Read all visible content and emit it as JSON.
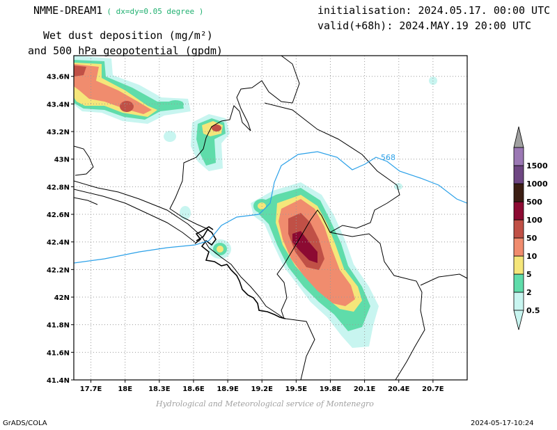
{
  "header": {
    "model": "NMME-DREAM1",
    "resolution": "( dx=dy=0.05 degree )",
    "title_line1": "Wet dust deposition (mg/m²)",
    "title_line2": "and 500 hPa geopotential (gpdm)",
    "init": "initialisation: 2024.05.17. 00:00 UTC",
    "valid": "valid(+68h): 2024.MAY.19 20:00 UTC"
  },
  "footer": {
    "credit": "Hydrological and Meteorological service of Montenegro",
    "software": "GrADS/COLA",
    "timestamp": "2024-05-17-10:24"
  },
  "map": {
    "lon_range": [
      17.55,
      21.0
    ],
    "lat_range": [
      41.4,
      43.75
    ],
    "lon_ticks": [
      17.7,
      18.0,
      18.3,
      18.6,
      18.9,
      19.2,
      19.5,
      19.8,
      20.1,
      20.4,
      20.7
    ],
    "lon_tick_labels": [
      "17.7E",
      "18E",
      "18.3E",
      "18.6E",
      "18.9E",
      "19.2E",
      "19.5E",
      "19.8E",
      "20.1E",
      "20.4E",
      "20.7E"
    ],
    "lat_ticks": [
      41.4,
      41.6,
      41.8,
      42.0,
      42.2,
      42.4,
      42.6,
      42.8,
      43.0,
      43.2,
      43.4,
      43.6
    ],
    "lat_tick_labels": [
      "41.4N",
      "41.6N",
      "41.8N",
      "42N",
      "42.2N",
      "42.4N",
      "42.6N",
      "42.8N",
      "43N",
      "43.2N",
      "43.4N",
      "43.6N"
    ],
    "contour_label": "568",
    "contour_color": "#2aa0e8"
  },
  "colorbar": {
    "levels": [
      "0.5",
      "2",
      "5",
      "10",
      "50",
      "100",
      "500",
      "1000",
      "1500"
    ],
    "colors": [
      "#c8f5f0",
      "#5fdcaa",
      "#f5e67a",
      "#f08c6e",
      "#c05046",
      "#8c0a32",
      "#3c1e14",
      "#6e4682",
      "#9b78b4"
    ],
    "cap_top_color": "#a0a0a0"
  }
}
